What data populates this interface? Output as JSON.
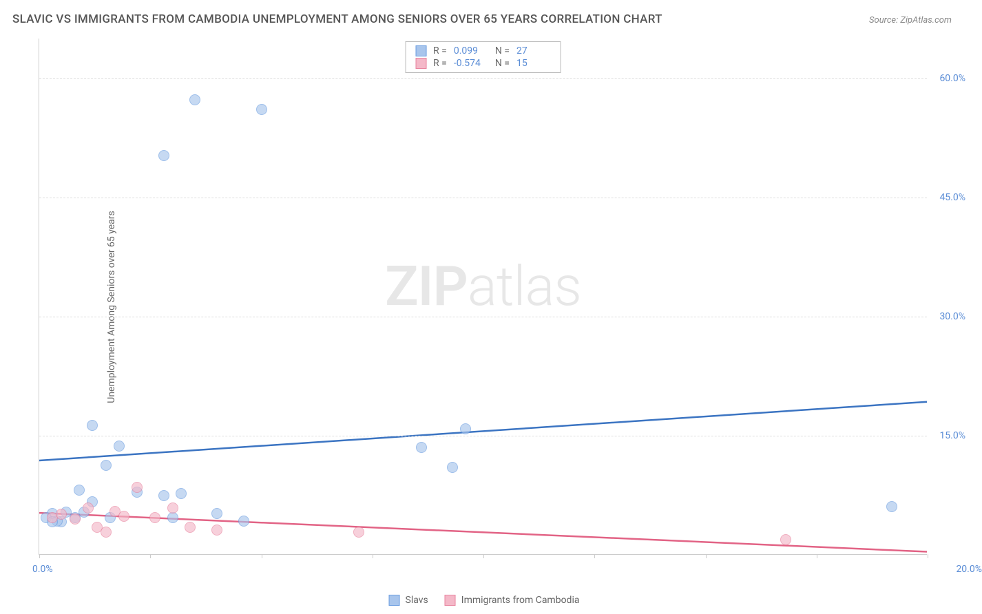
{
  "title": "SLAVIC VS IMMIGRANTS FROM CAMBODIA UNEMPLOYMENT AMONG SENIORS OVER 65 YEARS CORRELATION CHART",
  "source": "Source: ZipAtlas.com",
  "yaxis_title": "Unemployment Among Seniors over 65 years",
  "watermark_bold": "ZIP",
  "watermark_light": "atlas",
  "type": "scatter",
  "background_color": "#ffffff",
  "grid_color": "#dddddd",
  "axis_color": "#cccccc",
  "tick_label_color": "#5b8dd6",
  "xlim": [
    0,
    20
  ],
  "ylim": [
    0,
    65
  ],
  "x_ticks": [
    0,
    2.5,
    5,
    7.5,
    10,
    12.5,
    15,
    17.5,
    20
  ],
  "x_tick_labels_shown": {
    "start": "0.0%",
    "end": "20.0%"
  },
  "y_ticks": [
    15,
    30,
    45,
    60
  ],
  "y_tick_labels": [
    "15.0%",
    "30.0%",
    "45.0%",
    "60.0%"
  ],
  "series": [
    {
      "name": "Slavs",
      "color_fill": "#a8c5ec",
      "color_stroke": "#6b9de0",
      "trend_color": "#3b74c2",
      "R": "0.099",
      "N": "27",
      "trend": {
        "x1": 0,
        "y1": 11.8,
        "x2": 20,
        "y2": 19.2
      },
      "points": [
        {
          "x": 1.2,
          "y": 16.2
        },
        {
          "x": 3.5,
          "y": 57.2
        },
        {
          "x": 2.8,
          "y": 50.2
        },
        {
          "x": 5.0,
          "y": 56.0
        },
        {
          "x": 1.8,
          "y": 13.6
        },
        {
          "x": 1.5,
          "y": 11.2
        },
        {
          "x": 2.2,
          "y": 7.8
        },
        {
          "x": 0.9,
          "y": 8.1
        },
        {
          "x": 1.2,
          "y": 6.6
        },
        {
          "x": 0.3,
          "y": 5.1
        },
        {
          "x": 0.5,
          "y": 4.1
        },
        {
          "x": 0.6,
          "y": 5.3
        },
        {
          "x": 0.15,
          "y": 4.6
        },
        {
          "x": 0.4,
          "y": 4.2
        },
        {
          "x": 0.8,
          "y": 4.6
        },
        {
          "x": 1.0,
          "y": 5.3
        },
        {
          "x": 1.6,
          "y": 4.6
        },
        {
          "x": 2.8,
          "y": 7.4
        },
        {
          "x": 3.2,
          "y": 7.6
        },
        {
          "x": 3.0,
          "y": 4.6
        },
        {
          "x": 4.0,
          "y": 5.1
        },
        {
          "x": 4.6,
          "y": 4.2
        },
        {
          "x": 8.6,
          "y": 13.4
        },
        {
          "x": 9.3,
          "y": 10.9
        },
        {
          "x": 9.6,
          "y": 15.8
        },
        {
          "x": 19.2,
          "y": 6.0
        },
        {
          "x": 0.3,
          "y": 4.1
        }
      ]
    },
    {
      "name": "Immigrants from Cambodia",
      "color_fill": "#f4b8c8",
      "color_stroke": "#e8849f",
      "trend_color": "#e26385",
      "R": "-0.574",
      "N": "15",
      "trend": {
        "x1": 0,
        "y1": 5.2,
        "x2": 20,
        "y2": 0.3
      },
      "points": [
        {
          "x": 0.3,
          "y": 4.6
        },
        {
          "x": 0.5,
          "y": 5.0
        },
        {
          "x": 0.8,
          "y": 4.4
        },
        {
          "x": 1.1,
          "y": 5.8
        },
        {
          "x": 1.3,
          "y": 3.4
        },
        {
          "x": 1.5,
          "y": 2.8
        },
        {
          "x": 1.7,
          "y": 5.4
        },
        {
          "x": 1.9,
          "y": 4.8
        },
        {
          "x": 2.2,
          "y": 8.4
        },
        {
          "x": 2.6,
          "y": 4.6
        },
        {
          "x": 3.0,
          "y": 5.8
        },
        {
          "x": 3.4,
          "y": 3.4
        },
        {
          "x": 4.0,
          "y": 3.0
        },
        {
          "x": 7.2,
          "y": 2.8
        },
        {
          "x": 16.8,
          "y": 1.8
        }
      ]
    }
  ],
  "stats_labels": {
    "R": "R =",
    "N": "N ="
  },
  "legend": {
    "series1": "Slavs",
    "series2": "Immigrants from Cambodia"
  }
}
